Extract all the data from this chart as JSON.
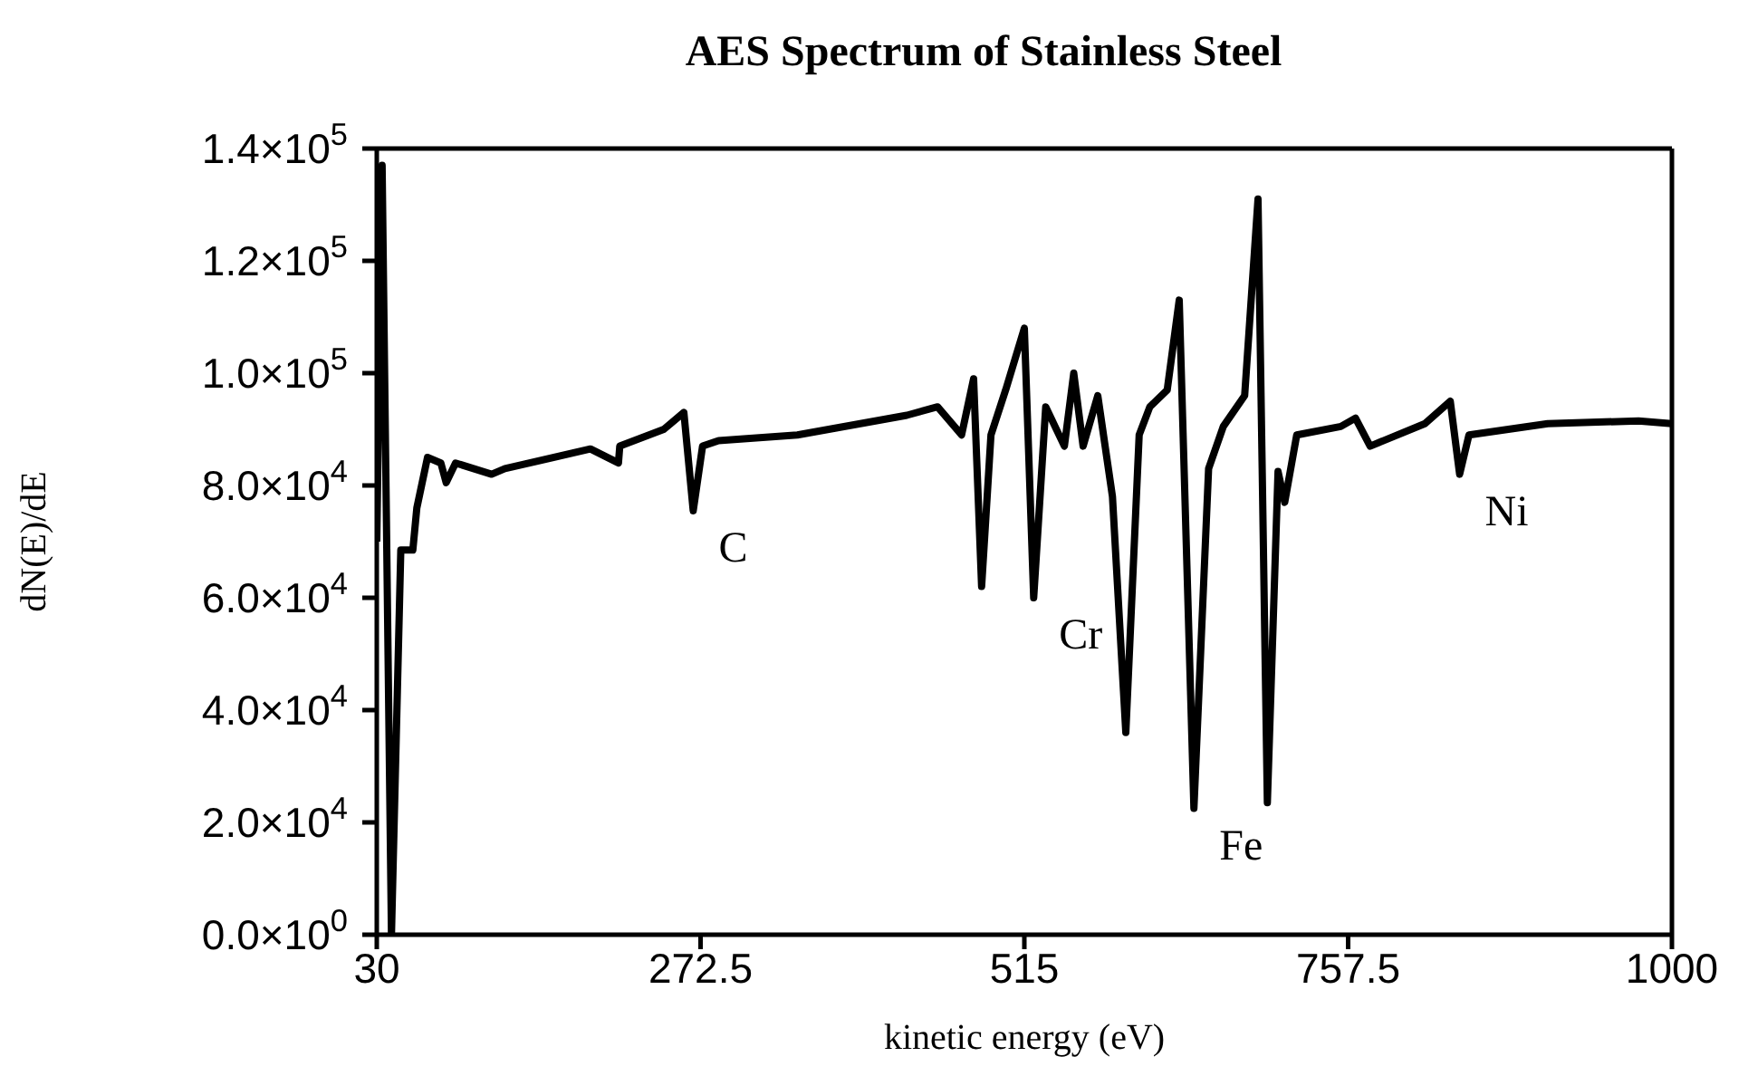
{
  "chart_data": {
    "type": "line",
    "title": "AES Spectrum of Stainless Steel",
    "xlabel": "kinetic energy (eV)",
    "ylabel": "dN(E)/dE",
    "x": [
      30,
      34,
      41,
      48,
      57,
      60,
      68,
      78,
      82,
      89,
      116,
      126,
      190,
      211,
      212,
      245,
      260,
      267,
      274,
      286,
      345,
      427,
      450,
      468,
      477,
      483,
      490,
      501,
      515,
      522,
      531,
      545,
      552,
      559,
      570,
      581,
      591,
      601,
      609,
      622,
      631,
      642,
      653,
      664,
      680,
      690,
      697,
      705,
      710,
      719,
      752,
      763,
      774,
      815,
      834,
      841,
      848,
      907,
      975,
      1000
    ],
    "series": [
      {
        "color": "#000000",
        "values": [
          70000,
          137000,
          0,
          68500,
          68500,
          76000,
          85000,
          84000,
          80500,
          84000,
          82000,
          83000,
          86500,
          84000,
          87000,
          90000,
          93000,
          75500,
          87000,
          88000,
          89000,
          92500,
          94000,
          89000,
          99000,
          62000,
          89000,
          97000,
          108000,
          60000,
          94000,
          87000,
          100000,
          87000,
          96000,
          78000,
          36000,
          89000,
          94000,
          97000,
          113000,
          22500,
          83000,
          90500,
          96000,
          131000,
          23500,
          82500,
          77000,
          89000,
          90500,
          92000,
          87000,
          91000,
          95000,
          82000,
          89000,
          91000,
          91500,
          91000
        ]
      }
    ],
    "xlim": [
      30,
      1000
    ],
    "xticks": [
      30,
      272.5,
      515,
      757.5,
      1000
    ],
    "ylim": [
      0,
      140000
    ],
    "yticks": [
      {
        "value": 0,
        "label": "0.0×10$^{0}$"
      },
      {
        "value": 20000,
        "label": "2.0×10$^{4}$"
      },
      {
        "value": 40000,
        "label": "4.0×10$^{4}$"
      },
      {
        "value": 60000,
        "label": "6.0×10$^{4}$"
      },
      {
        "value": 80000,
        "label": "8.0×10$^{4}$"
      },
      {
        "value": 100000,
        "label": "1.0×10$^{5}$"
      },
      {
        "value": 120000,
        "label": "1.2×10$^{5}$"
      },
      {
        "value": 140000,
        "label": "1.4×10$^{5}$"
      }
    ],
    "marker": "none",
    "line_style": "solid",
    "annotations": [
      {
        "text": "C",
        "x": 267,
        "y": 75500
      },
      {
        "text": "Cr",
        "x": 522,
        "y": 60000
      },
      {
        "text": "Fe",
        "x": 642,
        "y": 22500
      },
      {
        "text": "Ni",
        "x": 841,
        "y": 82000
      }
    ]
  }
}
